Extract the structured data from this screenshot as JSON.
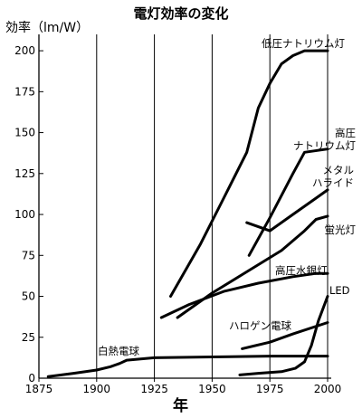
{
  "title": "電灯効率の変化",
  "chart_data": {
    "type": "line",
    "title": "電灯効率の変化",
    "ylabel": "効率（lm/W）",
    "xlabel": "年",
    "xlim": [
      1875,
      2000
    ],
    "ylim": [
      0,
      210
    ],
    "x_ticks": [
      1875,
      1900,
      1925,
      1950,
      1975,
      2000
    ],
    "y_ticks": [
      0,
      25,
      50,
      75,
      100,
      125,
      150,
      175,
      200
    ],
    "grid": true,
    "series": [
      {
        "name": "白熱電球",
        "label_lines": [
          "白熱電球"
        ],
        "x": [
          1879,
          1890,
          1900,
          1906,
          1910,
          1913,
          1925,
          1950,
          1975,
          2000
        ],
        "y": [
          1,
          3,
          5,
          7,
          9,
          11,
          12.5,
          13,
          13.5,
          13.5
        ]
      },
      {
        "name": "低圧ナトリウム灯",
        "label_lines": [
          "低圧ナトリウム灯"
        ],
        "x": [
          1932,
          1945,
          1955,
          1965,
          1970,
          1975,
          1980,
          1985,
          1990,
          1993,
          1997,
          2000
        ],
        "y": [
          50,
          82,
          110,
          138,
          165,
          180,
          192,
          197,
          200,
          200,
          200,
          200
        ]
      },
      {
        "name": "高圧ナトリウム灯",
        "label_lines": [
          "高圧",
          "ナトリウム灯"
        ],
        "x": [
          1966,
          1975,
          1985,
          1990,
          2000
        ],
        "y": [
          75,
          98,
          125,
          138,
          140
        ]
      },
      {
        "name": "メタルハライド",
        "label_lines": [
          "メタル",
          "ハライド"
        ],
        "x": [
          1965,
          1975,
          1985,
          1995,
          2000
        ],
        "y": [
          95,
          90,
          100,
          110,
          115
        ]
      },
      {
        "name": "蛍光灯",
        "label_lines": [
          "蛍光灯"
        ],
        "x": [
          1935,
          1950,
          1965,
          1980,
          1990,
          1995,
          2000
        ],
        "y": [
          37,
          52,
          65,
          78,
          90,
          97,
          99
        ]
      },
      {
        "name": "高圧水銀灯",
        "label_lines": [
          "高圧水銀灯"
        ],
        "x": [
          1928,
          1940,
          1955,
          1970,
          1985,
          1995,
          2000
        ],
        "y": [
          37,
          45,
          53,
          58,
          62,
          64,
          64
        ]
      },
      {
        "name": "ハロゲン電球",
        "label_lines": [
          "ハロゲン電球"
        ],
        "x": [
          1963,
          1975,
          1985,
          2000
        ],
        "y": [
          18,
          22,
          27,
          34
        ]
      },
      {
        "name": "LED",
        "label_lines": [
          "LED"
        ],
        "x": [
          1962,
          1970,
          1980,
          1986,
          1990,
          1993,
          1996,
          2000
        ],
        "y": [
          2,
          3,
          4,
          6,
          10,
          20,
          35,
          50
        ]
      }
    ]
  }
}
